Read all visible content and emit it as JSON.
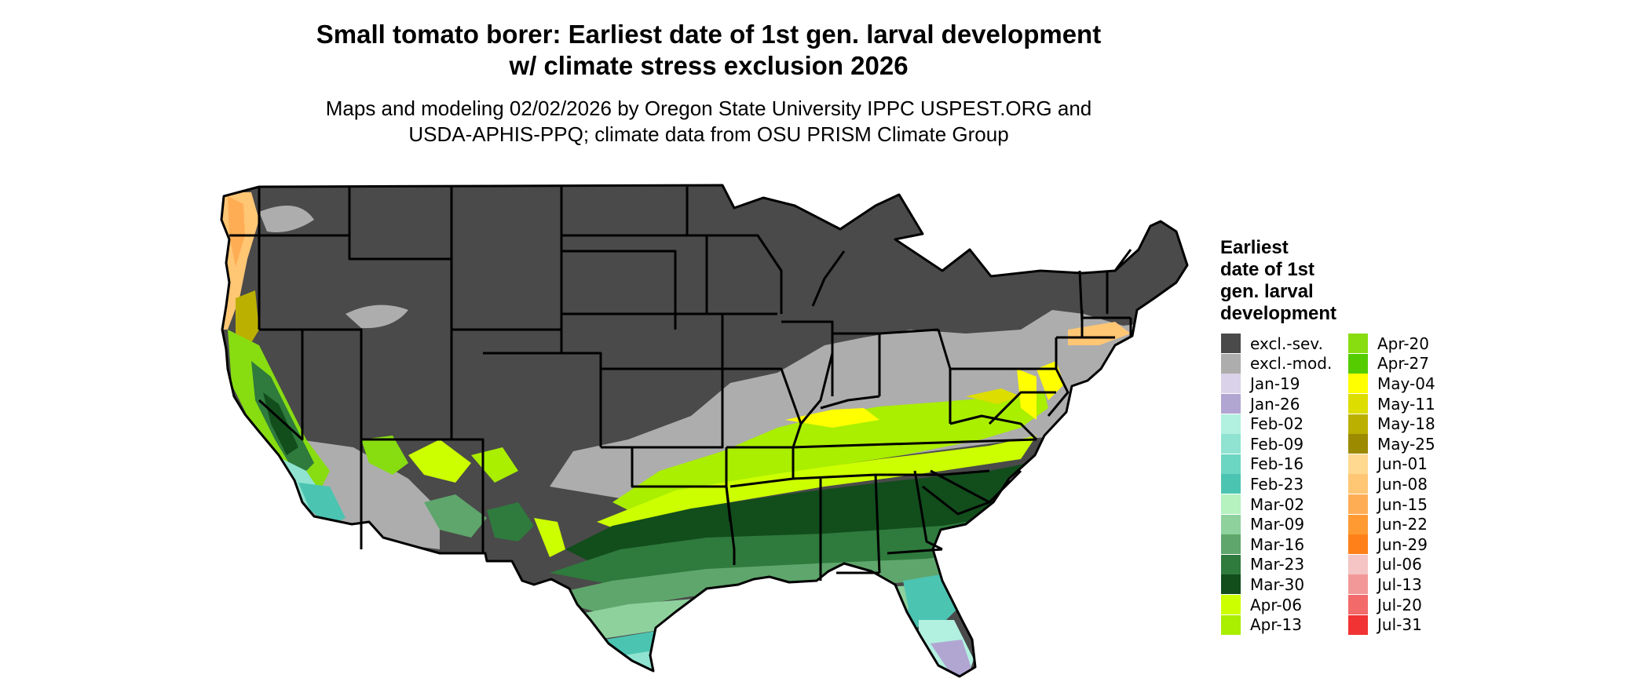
{
  "title": {
    "line1": "Small tomato borer: Earliest date of 1st gen. larval development",
    "line2": "w/ climate stress exclusion 2026"
  },
  "subtitle": {
    "line1": "Maps and modeling 02/02/2026 by Oregon State University IPPC USPEST.ORG and",
    "line2": "USDA-APHIS-PPQ; climate data from OSU PRISM Climate Group"
  },
  "legend": {
    "title_lines": [
      "Earliest",
      "date of 1st",
      "gen. larval",
      "development"
    ],
    "items": [
      {
        "label": "excl.-sev.",
        "color": "#4a4a4a"
      },
      {
        "label": "excl.-mod.",
        "color": "#adadad"
      },
      {
        "label": "Jan-19",
        "color": "#d9d2e9"
      },
      {
        "label": "Jan-26",
        "color": "#b1a6d2"
      },
      {
        "label": "Feb-02",
        "color": "#b2f0e0"
      },
      {
        "label": "Feb-09",
        "color": "#8fe3d0"
      },
      {
        "label": "Feb-16",
        "color": "#6dd6c3"
      },
      {
        "label": "Feb-23",
        "color": "#4cc4b2"
      },
      {
        "label": "Mar-02",
        "color": "#b5f2c0"
      },
      {
        "label": "Mar-09",
        "color": "#8ed19d"
      },
      {
        "label": "Mar-16",
        "color": "#5fa66c"
      },
      {
        "label": "Mar-23",
        "color": "#2f7a3d"
      },
      {
        "label": "Mar-30",
        "color": "#124d1c"
      },
      {
        "label": "Apr-06",
        "color": "#ccff00"
      },
      {
        "label": "Apr-13",
        "color": "#aaee00"
      },
      {
        "label": "Apr-20",
        "color": "#88dd11"
      },
      {
        "label": "Apr-27",
        "color": "#55cc00"
      },
      {
        "label": "May-04",
        "color": "#ffff00"
      },
      {
        "label": "May-11",
        "color": "#dddd00"
      },
      {
        "label": "May-18",
        "color": "#bbb000"
      },
      {
        "label": "May-25",
        "color": "#9c8a00"
      },
      {
        "label": "Jun-01",
        "color": "#ffd990"
      },
      {
        "label": "Jun-08",
        "color": "#ffc674"
      },
      {
        "label": "Jun-15",
        "color": "#ffad55"
      },
      {
        "label": "Jun-22",
        "color": "#ff9a33"
      },
      {
        "label": "Jun-29",
        "color": "#ff8018"
      },
      {
        "label": "Jul-06",
        "color": "#f5c4c4"
      },
      {
        "label": "Jul-13",
        "color": "#f29898"
      },
      {
        "label": "Jul-20",
        "color": "#f26a6a"
      },
      {
        "label": "Jul-31",
        "color": "#f23333"
      }
    ]
  }
}
